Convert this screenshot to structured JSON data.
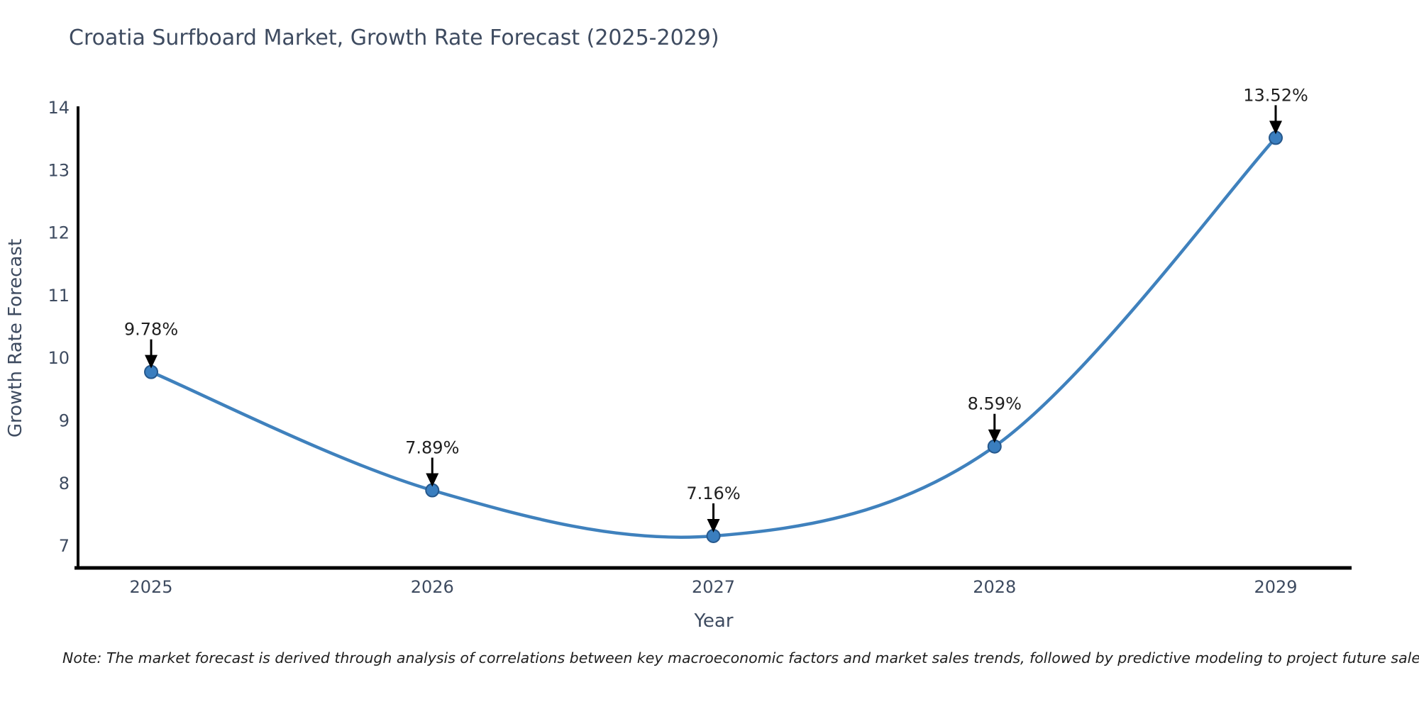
{
  "title": "Croatia Surfboard Market, Growth Rate Forecast (2025-2029)",
  "note": "Note: The market forecast is derived through analysis of correlations between key macroeconomic factors and market sales trends, followed by predictive modeling to project future sales",
  "chart_data": {
    "type": "line",
    "x": [
      2025,
      2026,
      2027,
      2028,
      2029
    ],
    "values": [
      9.78,
      7.89,
      7.16,
      8.59,
      13.52
    ],
    "point_labels": [
      "9.78%",
      "7.89%",
      "7.16%",
      "8.59%",
      "13.52%"
    ],
    "title": "Croatia Surfboard Market, Growth Rate Forecast (2025-2029)",
    "xlabel": "Year",
    "ylabel": "Growth Rate Forecast",
    "x_tick_labels": [
      "2025",
      "2026",
      "2027",
      "2028",
      "2029"
    ],
    "y_tick_values": [
      7,
      8,
      9,
      10,
      11,
      12,
      13,
      14
    ],
    "xlim": [
      2024.74,
      2029.27
    ],
    "ylim": [
      6.65,
      14.0
    ],
    "grid": false,
    "legend_position": "none",
    "curve": "spline",
    "line_color": "#3f81bd",
    "marker_fill_color": "#3a7ebf",
    "marker_edge_color": "#26588c",
    "arrow_color": "#000000",
    "annotation_text_color": "#1f1f1f",
    "axis_line_color": "#000000",
    "tick_label_color": "#3e4b60",
    "axis_title_color": "#3e4b60",
    "background_color": "#ffffff"
  }
}
